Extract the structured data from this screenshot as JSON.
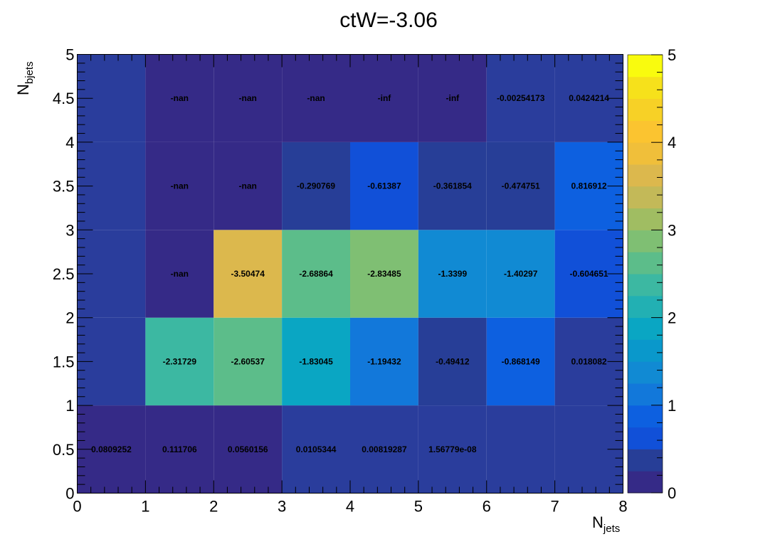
{
  "chart_data": {
    "type": "heatmap",
    "title": "ctW=-3.06",
    "xlabel": {
      "main": "N",
      "sub": "jets"
    },
    "ylabel": {
      "main": "N",
      "sub": "bjets"
    },
    "xlim": [
      0,
      8
    ],
    "ylim": [
      0,
      5
    ],
    "x_ticks": [
      "0",
      "1",
      "2",
      "3",
      "4",
      "5",
      "6",
      "7",
      "8"
    ],
    "y_ticks": [
      "0",
      "0.5",
      "1",
      "1.5",
      "2",
      "2.5",
      "3",
      "3.5",
      "4",
      "4.5",
      "5"
    ],
    "x_bin_edges": [
      0,
      1,
      2,
      3,
      4,
      5,
      6,
      7,
      8
    ],
    "y_bin_edges": [
      0,
      1,
      2,
      3,
      4,
      5
    ],
    "colorbar": {
      "min": 0,
      "max": 5,
      "ticks": [
        "0",
        "1",
        "2",
        "3",
        "4",
        "5"
      ],
      "levels": 20
    },
    "nan_color_value": 0,
    "cells": [
      {
        "x": 0,
        "y": 0,
        "value": 0.0809252,
        "label": "0.0809252"
      },
      {
        "x": 1,
        "y": 0,
        "value": 0.111706,
        "label": "0.111706"
      },
      {
        "x": 2,
        "y": 0,
        "value": 0.0560156,
        "label": "0.0560156"
      },
      {
        "x": 3,
        "y": 0,
        "value": 0.0105344,
        "label": "0.0105344"
      },
      {
        "x": 4,
        "y": 0,
        "value": 0.00819287,
        "label": "0.00819287"
      },
      {
        "x": 5,
        "y": 0,
        "value": 1.56779e-08,
        "label": "1.56779e-08"
      },
      {
        "x": 6,
        "y": 0,
        "value": 0,
        "label": ""
      },
      {
        "x": 7,
        "y": 0,
        "value": 0,
        "label": ""
      },
      {
        "x": 0,
        "y": 1,
        "value": 0,
        "label": ""
      },
      {
        "x": 1,
        "y": 1,
        "value": -2.31729,
        "label": "-2.31729"
      },
      {
        "x": 2,
        "y": 1,
        "value": -2.60537,
        "label": "-2.60537"
      },
      {
        "x": 3,
        "y": 1,
        "value": -1.83045,
        "label": "-1.83045"
      },
      {
        "x": 4,
        "y": 1,
        "value": -1.19432,
        "label": "-1.19432"
      },
      {
        "x": 5,
        "y": 1,
        "value": -0.49412,
        "label": "-0.49412"
      },
      {
        "x": 6,
        "y": 1,
        "value": -0.868149,
        "label": "-0.868149"
      },
      {
        "x": 7,
        "y": 1,
        "value": 0.018082,
        "label": "0.018082"
      },
      {
        "x": 0,
        "y": 2,
        "value": 0,
        "label": ""
      },
      {
        "x": 1,
        "y": 2,
        "value": null,
        "label": "-nan"
      },
      {
        "x": 2,
        "y": 2,
        "value": -3.50474,
        "label": "-3.50474"
      },
      {
        "x": 3,
        "y": 2,
        "value": -2.68864,
        "label": "-2.68864"
      },
      {
        "x": 4,
        "y": 2,
        "value": -2.83485,
        "label": "-2.83485"
      },
      {
        "x": 5,
        "y": 2,
        "value": -1.3399,
        "label": "-1.3399"
      },
      {
        "x": 6,
        "y": 2,
        "value": -1.40297,
        "label": "-1.40297"
      },
      {
        "x": 7,
        "y": 2,
        "value": -0.604651,
        "label": "-0.604651"
      },
      {
        "x": 0,
        "y": 3,
        "value": 0,
        "label": ""
      },
      {
        "x": 1,
        "y": 3,
        "value": null,
        "label": "-nan"
      },
      {
        "x": 2,
        "y": 3,
        "value": null,
        "label": "-nan"
      },
      {
        "x": 3,
        "y": 3,
        "value": -0.290769,
        "label": "-0.290769"
      },
      {
        "x": 4,
        "y": 3,
        "value": -0.61387,
        "label": "-0.61387"
      },
      {
        "x": 5,
        "y": 3,
        "value": -0.361854,
        "label": "-0.361854"
      },
      {
        "x": 6,
        "y": 3,
        "value": -0.474751,
        "label": "-0.474751"
      },
      {
        "x": 7,
        "y": 3,
        "value": 0.816912,
        "label": "0.816912"
      },
      {
        "x": 0,
        "y": 4,
        "value": 0,
        "label": ""
      },
      {
        "x": 1,
        "y": 4,
        "value": null,
        "label": "-nan"
      },
      {
        "x": 2,
        "y": 4,
        "value": null,
        "label": "-nan"
      },
      {
        "x": 3,
        "y": 4,
        "value": null,
        "label": "-nan"
      },
      {
        "x": 4,
        "y": 4,
        "value": null,
        "label": "-inf"
      },
      {
        "x": 5,
        "y": 4,
        "value": null,
        "label": "-inf"
      },
      {
        "x": 6,
        "y": 4,
        "value": -0.00254173,
        "label": "-0.00254173"
      },
      {
        "x": 7,
        "y": 4,
        "value": 0.0424214,
        "label": "0.0424214"
      }
    ],
    "palette_colors": [
      "#352a87",
      "#273e97",
      "#1150d8",
      "#0d60e0",
      "#1278da",
      "#118ad3",
      "#0a98cb",
      "#0aa6c3",
      "#22b0b3",
      "#3cb8a2",
      "#5cbd8a",
      "#7fbf73",
      "#a0bd62",
      "#c3b958",
      "#dcb84d",
      "#f0bf3a",
      "#fbc430",
      "#f7d126",
      "#f6e11b",
      "#f9fb0e"
    ],
    "empty_color": "#2a3d9c",
    "nan_color": "#352a87"
  }
}
